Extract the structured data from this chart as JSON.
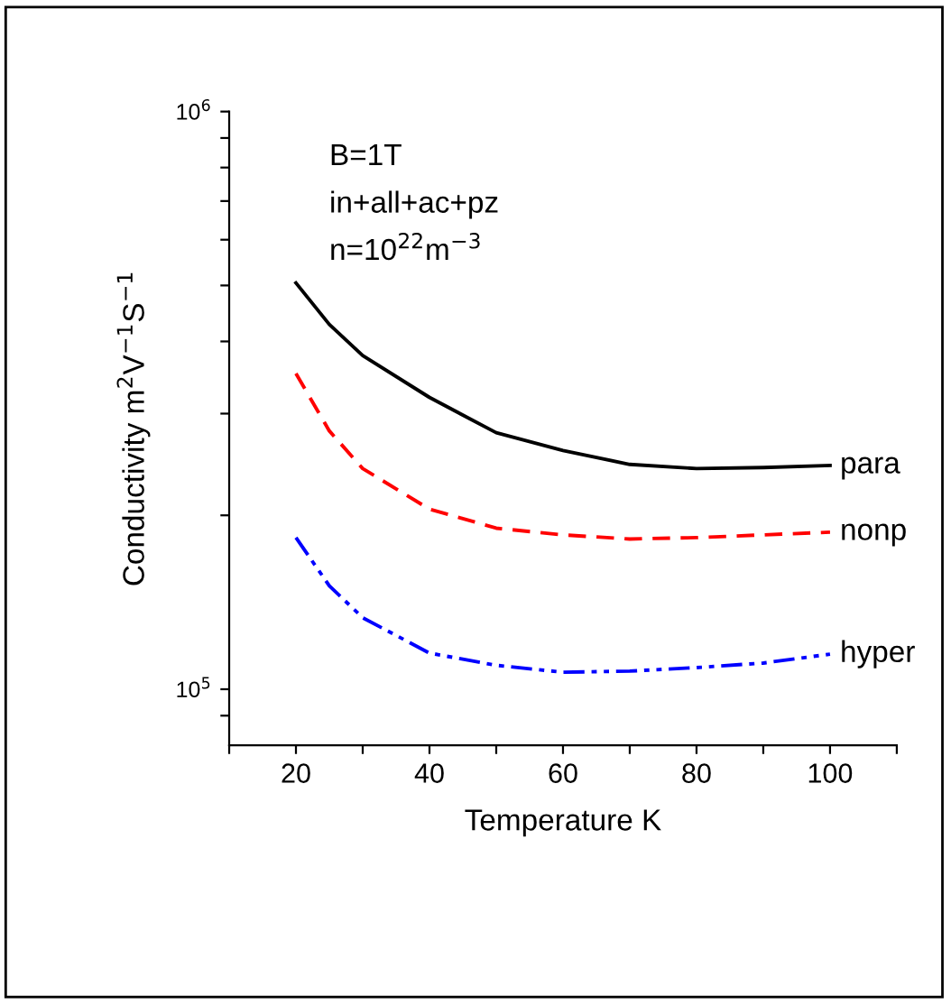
{
  "chart_data": {
    "type": "line",
    "xlabel": "Temperature K",
    "ylabel": "Conductivity m$^{2}$V$^{−1}$S$^{−1}$",
    "annotations": [
      "B=1T",
      "in+all+ac+pz",
      "n=10$^{22}$m$^{−3}$"
    ],
    "x": [
      20,
      25,
      30,
      40,
      50,
      60,
      70,
      80,
      90,
      100
    ],
    "series": [
      {
        "name": "para",
        "color": "#000000",
        "line_style": "solid",
        "values": [
          505000,
          428000,
          378000,
          320000,
          278000,
          259000,
          245000,
          241000,
          242000,
          244000
        ]
      },
      {
        "name": "nonp",
        "color": "#ff0000",
        "line_style": "dashed",
        "values": [
          352000,
          280000,
          241000,
          205000,
          190000,
          185000,
          182000,
          183000,
          185000,
          187000
        ]
      },
      {
        "name": "hyper",
        "color": "#0000ff",
        "line_style": "dashdotdot",
        "values": [
          183000,
          151000,
          133000,
          115500,
          110000,
          107000,
          107500,
          109000,
          111000,
          115000
        ]
      }
    ],
    "log": "y",
    "xlim": [
      10,
      110
    ],
    "ylim": [
      80000,
      1000000
    ],
    "xticks": [
      {
        "value": 10,
        "label": null
      },
      20,
      {
        "value": 30,
        "label": null
      },
      40,
      {
        "value": 50,
        "label": null
      },
      60,
      {
        "value": 70,
        "label": null
      },
      80,
      {
        "value": 90,
        "label": null
      },
      100,
      {
        "value": 110,
        "label": null
      }
    ],
    "yticks": [
      {
        "value": 90000,
        "label": null
      },
      {
        "value": 100000,
        "label": "10$^{5}$"
      },
      {
        "value": 200000,
        "label": null
      },
      {
        "value": 300000,
        "label": null
      },
      {
        "value": 400000,
        "label": null
      },
      {
        "value": 500000,
        "label": null
      },
      {
        "value": 600000,
        "label": null
      },
      {
        "value": 700000,
        "label": null
      },
      {
        "value": 800000,
        "label": null
      },
      {
        "value": 900000,
        "label": null
      },
      {
        "value": 1000000,
        "label": "10$^{6}$"
      }
    ],
    "grid": false,
    "legend": false
  }
}
